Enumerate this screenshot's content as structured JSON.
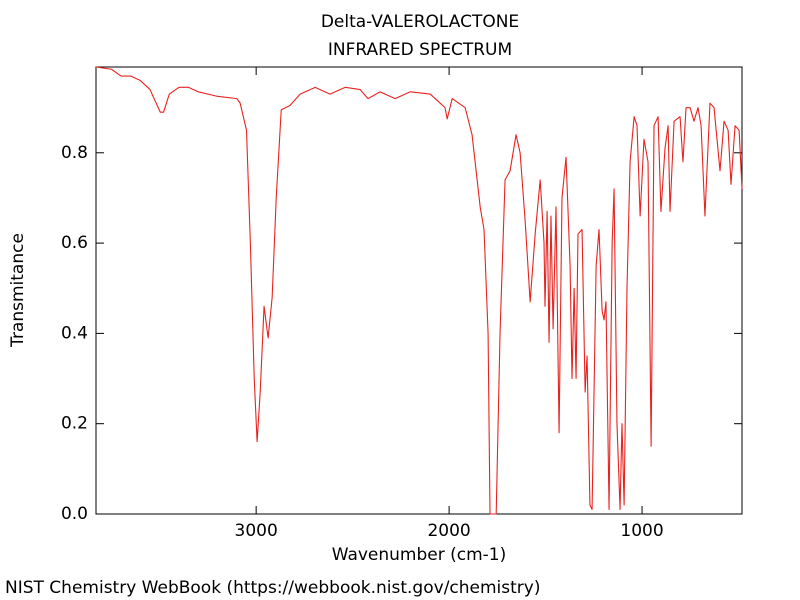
{
  "chart_data": {
    "type": "line",
    "title": "Delta-VALEROLACTONE",
    "subtitle": "INFRARED SPECTRUM",
    "xlabel": "Wavenumber (cm-1)",
    "ylabel": "Transmitance",
    "footer": "NIST Chemistry WebBook (https://webbook.nist.gov/chemistry)",
    "color": "#e8231f",
    "xlim": [
      3830,
      482
    ],
    "ylim": [
      0,
      0.99
    ],
    "xticks": [
      3000,
      2000,
      1000
    ],
    "yticks": [
      {
        "value": 0,
        "label": "0.0"
      },
      0.2,
      0.4,
      0.6,
      0.8
    ],
    "x": [
      3830,
      3750,
      3700,
      3650,
      3600,
      3550,
      3497,
      3480,
      3450,
      3400,
      3350,
      3300,
      3200,
      3100,
      3083,
      3050,
      3030,
      3010,
      2995,
      2979,
      2959,
      2938,
      2917,
      2896,
      2870,
      2824,
      2772,
      2694,
      2617,
      2539,
      2461,
      2420,
      2358,
      2280,
      2202,
      2098,
      2021,
      2010,
      1984,
      1917,
      1881,
      1839,
      1819,
      1798,
      1788,
      1756,
      1736,
      1710,
      1684,
      1653,
      1632,
      1606,
      1580,
      1554,
      1528,
      1508,
      1503,
      1492,
      1482,
      1472,
      1461,
      1446,
      1430,
      1415,
      1394,
      1373,
      1363,
      1352,
      1342,
      1332,
      1311,
      1295,
      1285,
      1270,
      1259,
      1238,
      1223,
      1207,
      1197,
      1187,
      1171,
      1155,
      1145,
      1130,
      1114,
      1104,
      1093,
      1078,
      1062,
      1041,
      1026,
      1010,
      990,
      969,
      953,
      938,
      917,
      902,
      881,
      865,
      855,
      834,
      803,
      788,
      772,
      751,
      731,
      710,
      694,
      674,
      648,
      627,
      596,
      575,
      554,
      539,
      518,
      497,
      482
    ],
    "values": [
      0.99,
      0.985,
      0.97,
      0.97,
      0.96,
      0.94,
      0.89,
      0.89,
      0.93,
      0.945,
      0.945,
      0.935,
      0.925,
      0.92,
      0.91,
      0.85,
      0.6,
      0.3,
      0.16,
      0.27,
      0.46,
      0.39,
      0.48,
      0.7,
      0.895,
      0.905,
      0.93,
      0.945,
      0.93,
      0.945,
      0.94,
      0.92,
      0.935,
      0.92,
      0.935,
      0.93,
      0.9,
      0.875,
      0.92,
      0.9,
      0.84,
      0.68,
      0.63,
      0.4,
      0.0,
      0.0,
      0.4,
      0.74,
      0.76,
      0.84,
      0.8,
      0.65,
      0.47,
      0.62,
      0.74,
      0.6,
      0.46,
      0.67,
      0.38,
      0.66,
      0.41,
      0.68,
      0.18,
      0.7,
      0.79,
      0.55,
      0.3,
      0.5,
      0.3,
      0.62,
      0.63,
      0.27,
      0.35,
      0.02,
      0.01,
      0.55,
      0.63,
      0.45,
      0.43,
      0.47,
      0.01,
      0.6,
      0.72,
      0.2,
      0.01,
      0.2,
      0.02,
      0.5,
      0.78,
      0.88,
      0.86,
      0.66,
      0.83,
      0.78,
      0.15,
      0.86,
      0.88,
      0.67,
      0.81,
      0.86,
      0.67,
      0.87,
      0.88,
      0.78,
      0.9,
      0.9,
      0.87,
      0.9,
      0.86,
      0.66,
      0.91,
      0.9,
      0.76,
      0.87,
      0.85,
      0.73,
      0.86,
      0.85,
      0.72
    ]
  }
}
